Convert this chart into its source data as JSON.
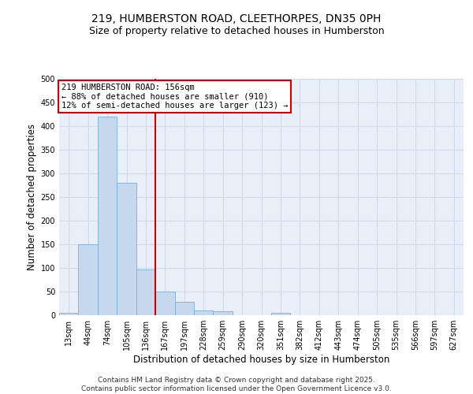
{
  "title1": "219, HUMBERSTON ROAD, CLEETHORPES, DN35 0PH",
  "title2": "Size of property relative to detached houses in Humberston",
  "xlabel": "Distribution of detached houses by size in Humberston",
  "ylabel": "Number of detached properties",
  "categories": [
    "13sqm",
    "44sqm",
    "74sqm",
    "105sqm",
    "136sqm",
    "167sqm",
    "197sqm",
    "228sqm",
    "259sqm",
    "290sqm",
    "320sqm",
    "351sqm",
    "382sqm",
    "412sqm",
    "443sqm",
    "474sqm",
    "505sqm",
    "535sqm",
    "566sqm",
    "597sqm",
    "627sqm"
  ],
  "values": [
    5,
    150,
    420,
    280,
    97,
    50,
    28,
    10,
    9,
    0,
    0,
    5,
    0,
    0,
    0,
    0,
    0,
    0,
    0,
    0,
    0
  ],
  "bar_color": "#c5d8ed",
  "bar_edge_color": "#7aafd4",
  "vline_x": 4.5,
  "vline_color": "#cc0000",
  "annotation_line1": "219 HUMBERSTON ROAD: 156sqm",
  "annotation_line2": "← 88% of detached houses are smaller (910)",
  "annotation_line3": "12% of semi-detached houses are larger (123) →",
  "annotation_box_color": "#cc0000",
  "ylim": [
    0,
    500
  ],
  "yticks": [
    0,
    50,
    100,
    150,
    200,
    250,
    300,
    350,
    400,
    450,
    500
  ],
  "footer": "Contains HM Land Registry data © Crown copyright and database right 2025.\nContains public sector information licensed under the Open Government Licence v3.0.",
  "bg_color": "#e8eff8",
  "grid_color": "#d0dae8",
  "title_fontsize": 10,
  "subtitle_fontsize": 9,
  "tick_fontsize": 7,
  "ylabel_fontsize": 8.5,
  "xlabel_fontsize": 8.5,
  "annotation_fontsize": 7.5,
  "footer_fontsize": 6.5
}
